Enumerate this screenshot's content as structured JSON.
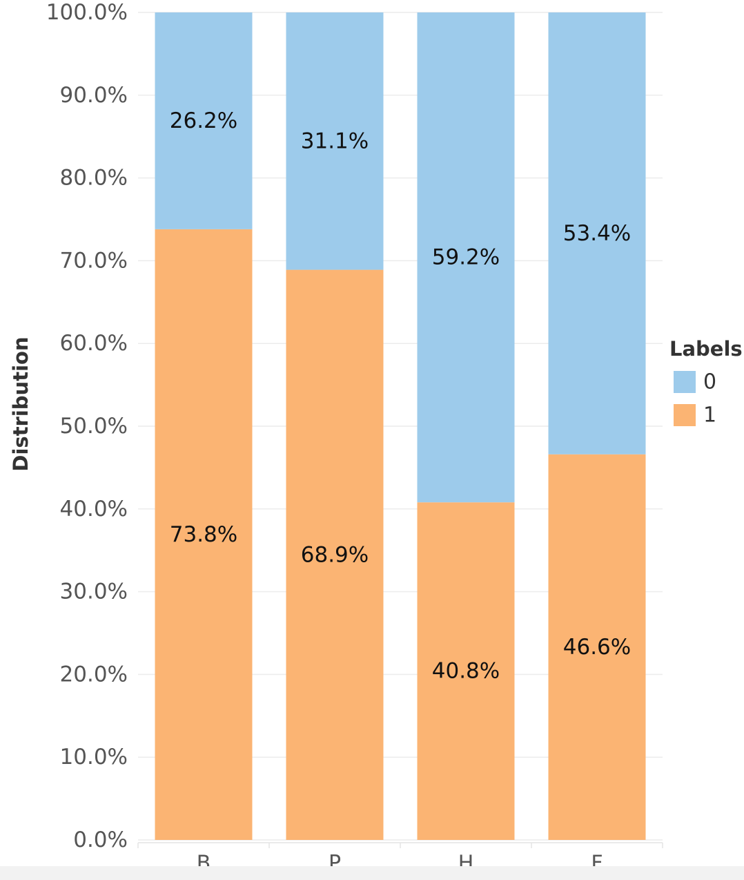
{
  "chart_data": {
    "type": "bar",
    "stacked": true,
    "categories": [
      "B",
      "P",
      "H",
      "F"
    ],
    "series": [
      {
        "name": "1",
        "values": [
          73.8,
          68.9,
          40.8,
          46.6
        ],
        "color": "#fbb473"
      },
      {
        "name": "0",
        "values": [
          26.2,
          31.1,
          59.2,
          53.4
        ],
        "color": "#9dcbeb"
      }
    ],
    "data_labels": {
      "1": [
        "73.8%",
        "68.9%",
        "40.8%",
        "46.6%"
      ],
      "0": [
        "26.2%",
        "31.1%",
        "59.2%",
        "53.4%"
      ]
    },
    "yticks": [
      "0.0%",
      "10.0%",
      "20.0%",
      "30.0%",
      "40.0%",
      "50.0%",
      "60.0%",
      "70.0%",
      "80.0%",
      "90.0%",
      "100.0%"
    ],
    "ylim": [
      0,
      100
    ],
    "ylabel": "Distribution",
    "xlabel": "",
    "title": "",
    "grid": true,
    "legend": {
      "title": "Labels",
      "position": "right",
      "entries": [
        "0",
        "1"
      ]
    }
  }
}
